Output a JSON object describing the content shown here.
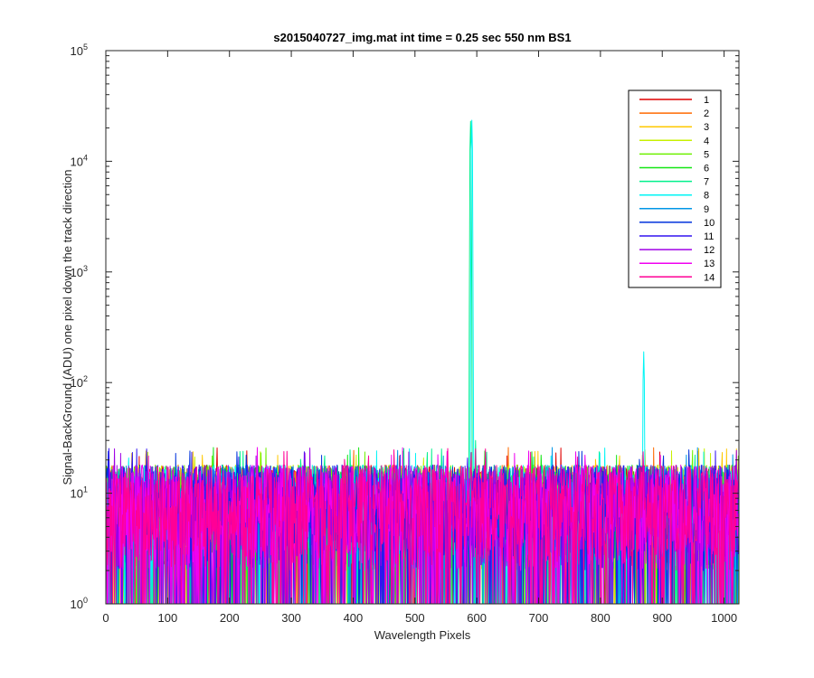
{
  "chart_data": {
    "type": "line",
    "title": "s2015040727_img.mat int time = 0.25 sec  550 nm BS1",
    "xlabel": "Wavelength Pixels",
    "ylabel": "Signal-BackGround (ADU) one pixel down the track direction",
    "xlim": [
      0,
      1024
    ],
    "ylim": [
      1,
      100000
    ],
    "yscale": "log",
    "grid": false,
    "legend_position": "top-right",
    "x_ticks": [
      "0",
      "100",
      "200",
      "300",
      "400",
      "500",
      "600",
      "700",
      "800",
      "900",
      "1000"
    ],
    "y_ticks": [
      {
        "base": "10",
        "exp": "0"
      },
      {
        "base": "10",
        "exp": "1"
      },
      {
        "base": "10",
        "exp": "2"
      },
      {
        "base": "10",
        "exp": "3"
      },
      {
        "base": "10",
        "exp": "4"
      },
      {
        "base": "10",
        "exp": "5"
      }
    ],
    "noise_floor": {
      "min": 1,
      "typical": 8,
      "max": 20
    },
    "series": [
      {
        "name": "1",
        "color": "#e00000"
      },
      {
        "name": "2",
        "color": "#ff6a00"
      },
      {
        "name": "3",
        "color": "#ffc800"
      },
      {
        "name": "4",
        "color": "#c8f000"
      },
      {
        "name": "5",
        "color": "#6ef000"
      },
      {
        "name": "6",
        "color": "#14e614"
      },
      {
        "name": "7",
        "color": "#00f08c",
        "peaks": [
          {
            "x": 590,
            "y": 23000
          },
          {
            "x": 598,
            "y": 30
          }
        ]
      },
      {
        "name": "8",
        "color": "#00f5f5",
        "peaks": [
          {
            "x": 592,
            "y": 23500
          },
          {
            "x": 870,
            "y": 190
          }
        ]
      },
      {
        "name": "9",
        "color": "#0096e6"
      },
      {
        "name": "10",
        "color": "#0032dc"
      },
      {
        "name": "11",
        "color": "#3214f0"
      },
      {
        "name": "12",
        "color": "#a000e6"
      },
      {
        "name": "13",
        "color": "#f000f0"
      },
      {
        "name": "14",
        "color": "#ff0096"
      }
    ]
  }
}
